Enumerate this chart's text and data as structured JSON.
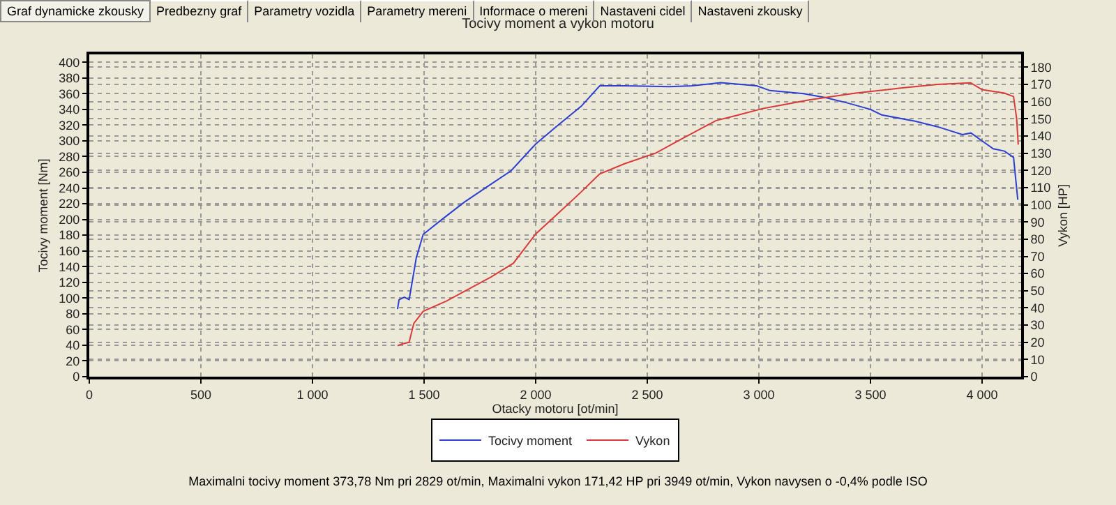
{
  "chart_data": {
    "type": "line",
    "title": "Tocivy moment a vykon motoru",
    "xlabel": "Otacky motoru [ot/min]",
    "ylabel": "Tocivy moment [Nm]",
    "y2label": "Vykon [HP]",
    "annotations": [
      "Graf dynamicke zkousky",
      "Predbezny graf",
      "Parametry vozidla",
      "Parametry mereni",
      "Informace o mereni",
      "Nastaveni cidel",
      "Nastaveni zkousky",
      "Maximalni tocivy moment 373,78 Nm pri 2829 ot/min,  Maximalni vykon 171,42 HP pri 3949 ot/min,  Vykon navysen o -0,4% podle ISO"
    ],
    "xlim": [
      0,
      4175
    ],
    "xticks": [
      0,
      500,
      {
        "value": 1000,
        "label": "1 000"
      },
      {
        "value": 1500,
        "label": "1 500"
      },
      {
        "value": 2000,
        "label": "2 000"
      },
      {
        "value": 2500,
        "label": "2 500"
      },
      {
        "value": 3000,
        "label": "3 000"
      },
      {
        "value": 3500,
        "label": "3 500"
      },
      {
        "value": 4000,
        "label": "4 000"
      }
    ],
    "ylim": [
      0,
      410
    ],
    "yticks": [
      0,
      20,
      40,
      60,
      80,
      100,
      120,
      140,
      160,
      180,
      200,
      220,
      240,
      260,
      280,
      300,
      320,
      340,
      360,
      380,
      400
    ],
    "y2lim": [
      0,
      187.5
    ],
    "y2ticks": [
      0,
      10,
      20,
      30,
      40,
      50,
      60,
      70,
      80,
      90,
      100,
      110,
      120,
      130,
      140,
      150,
      160,
      170,
      180
    ],
    "grid": true,
    "legend": "bottom",
    "line_style": "solid",
    "series": [
      {
        "name": "Tocivy moment",
        "color": "#2b3fd0",
        "x": [
          1381,
          1388,
          1412,
          1433,
          1444,
          1465,
          1496,
          1580,
          1680,
          1790,
          1890,
          2000,
          2100,
          2204,
          2287,
          2400,
          2600,
          2700,
          2829,
          2990,
          3050,
          3200,
          3300,
          3400,
          3500,
          3550,
          3700,
          3800,
          3912,
          3950,
          4000,
          4050,
          4100,
          4141,
          4160
        ],
        "values": [
          86,
          98,
          101,
          98,
          116,
          151,
          181,
          200,
          222,
          243,
          262,
          296,
          320,
          344,
          370,
          370,
          369,
          370,
          374,
          370,
          364,
          360,
          355,
          348,
          340,
          333,
          325,
          318,
          308,
          310,
          300,
          290,
          287,
          279,
          225
        ]
      },
      {
        "name": "Vykon",
        "color": "#d83a3a",
        "axis": "y2",
        "x": [
          1381,
          1400,
          1433,
          1454,
          1496,
          1600,
          1700,
          1800,
          1900,
          2000,
          2100,
          2200,
          2287,
          2400,
          2537,
          2650,
          2808,
          2900,
          3017,
          3100,
          3225,
          3433,
          3642,
          3800,
          3949,
          4000,
          4100,
          4141,
          4155,
          4162
        ],
        "values": [
          18,
          19,
          20,
          31,
          38,
          44,
          51,
          58,
          66,
          83,
          95,
          107,
          118,
          124,
          130,
          138,
          149,
          152,
          156,
          158,
          161,
          165,
          168,
          170,
          171,
          167,
          165,
          163,
          150,
          135
        ]
      }
    ]
  }
}
